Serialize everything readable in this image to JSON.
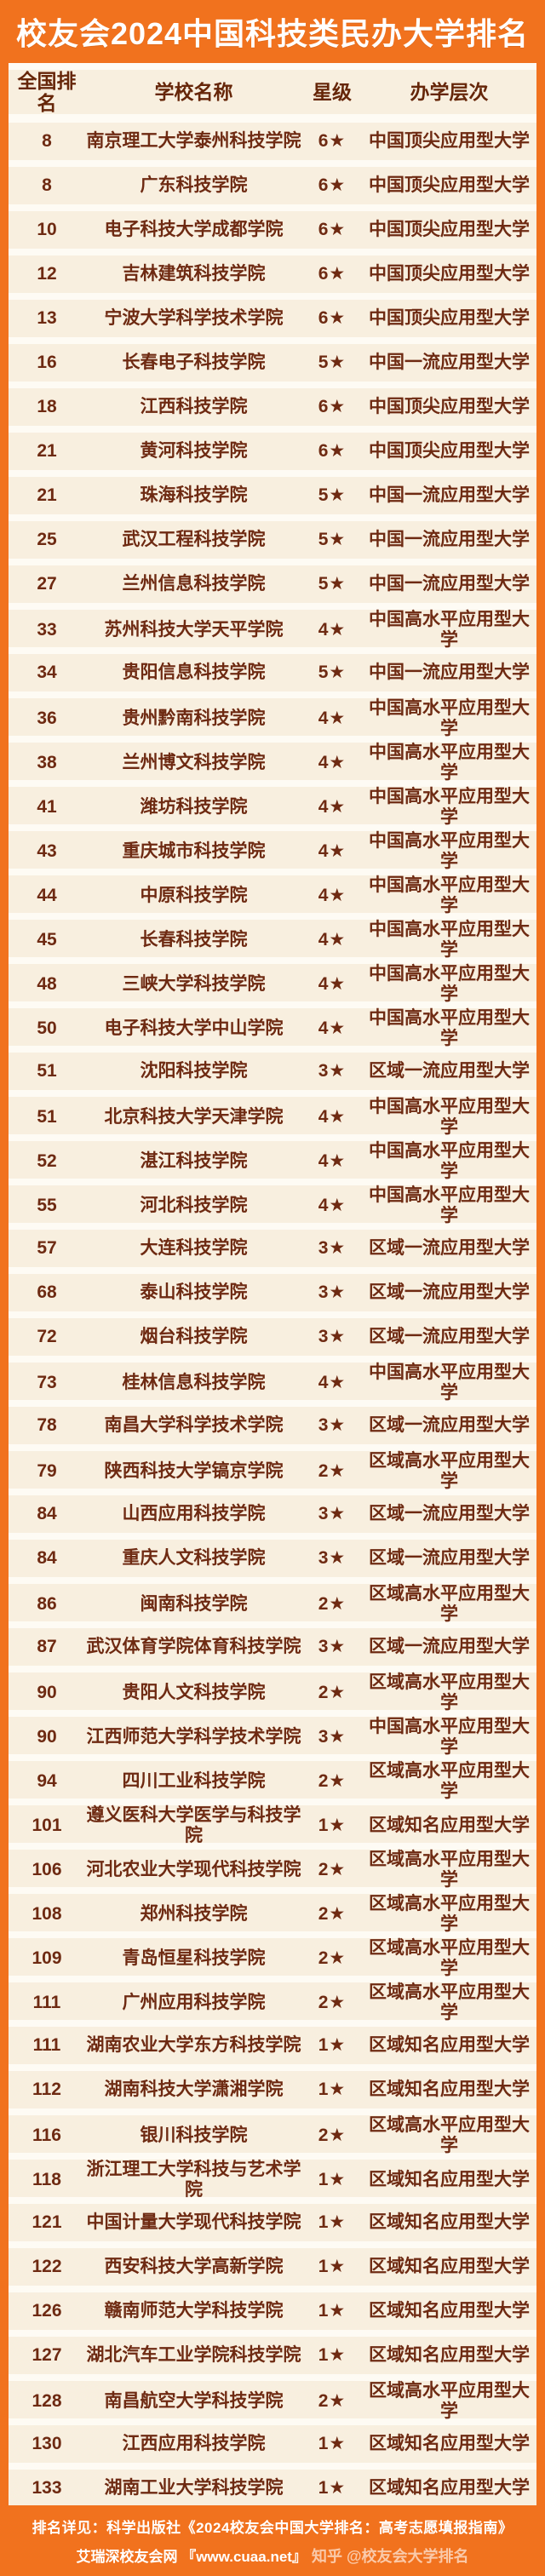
{
  "title": "校友会2024中国科技类民办大学排名",
  "colors": {
    "background_orange": "#F1721E",
    "panel_light": "#FEFBF4",
    "row_band_cream": "#F8EFDF",
    "text_dark_brown": "#6E2A12",
    "title_white": "#FFFFFF"
  },
  "chart_data": {
    "type": "table",
    "title": "校友会2024中国科技类民办大学排名",
    "columns": [
      "全国排名",
      "学校名称",
      "星级",
      "办学层次"
    ],
    "rows": [
      {
        "rank": "8",
        "name": "南京理工大学泰州科技学院",
        "star": "6★",
        "level": "中国顶尖应用型大学"
      },
      {
        "rank": "8",
        "name": "广东科技学院",
        "star": "6★",
        "level": "中国顶尖应用型大学"
      },
      {
        "rank": "10",
        "name": "电子科技大学成都学院",
        "star": "6★",
        "level": "中国顶尖应用型大学"
      },
      {
        "rank": "12",
        "name": "吉林建筑科技学院",
        "star": "6★",
        "level": "中国顶尖应用型大学"
      },
      {
        "rank": "13",
        "name": "宁波大学科学技术学院",
        "star": "6★",
        "level": "中国顶尖应用型大学"
      },
      {
        "rank": "16",
        "name": "长春电子科技学院",
        "star": "5★",
        "level": "中国一流应用型大学"
      },
      {
        "rank": "18",
        "name": "江西科技学院",
        "star": "6★",
        "level": "中国顶尖应用型大学"
      },
      {
        "rank": "21",
        "name": "黄河科技学院",
        "star": "6★",
        "level": "中国顶尖应用型大学"
      },
      {
        "rank": "21",
        "name": "珠海科技学院",
        "star": "5★",
        "level": "中国一流应用型大学"
      },
      {
        "rank": "25",
        "name": "武汉工程科技学院",
        "star": "5★",
        "level": "中国一流应用型大学"
      },
      {
        "rank": "27",
        "name": "兰州信息科技学院",
        "star": "5★",
        "level": "中国一流应用型大学"
      },
      {
        "rank": "33",
        "name": "苏州科技大学天平学院",
        "star": "4★",
        "level": "中国高水平应用型大学"
      },
      {
        "rank": "34",
        "name": "贵阳信息科技学院",
        "star": "5★",
        "level": "中国一流应用型大学"
      },
      {
        "rank": "36",
        "name": "贵州黔南科技学院",
        "star": "4★",
        "level": "中国高水平应用型大学"
      },
      {
        "rank": "38",
        "name": "兰州博文科技学院",
        "star": "4★",
        "level": "中国高水平应用型大学"
      },
      {
        "rank": "41",
        "name": "潍坊科技学院",
        "star": "4★",
        "level": "中国高水平应用型大学"
      },
      {
        "rank": "43",
        "name": "重庆城市科技学院",
        "star": "4★",
        "level": "中国高水平应用型大学"
      },
      {
        "rank": "44",
        "name": "中原科技学院",
        "star": "4★",
        "level": "中国高水平应用型大学"
      },
      {
        "rank": "45",
        "name": "长春科技学院",
        "star": "4★",
        "level": "中国高水平应用型大学"
      },
      {
        "rank": "48",
        "name": "三峡大学科技学院",
        "star": "4★",
        "level": "中国高水平应用型大学"
      },
      {
        "rank": "50",
        "name": "电子科技大学中山学院",
        "star": "4★",
        "level": "中国高水平应用型大学"
      },
      {
        "rank": "51",
        "name": "沈阳科技学院",
        "star": "3★",
        "level": "区域一流应用型大学"
      },
      {
        "rank": "51",
        "name": "北京科技大学天津学院",
        "star": "4★",
        "level": "中国高水平应用型大学"
      },
      {
        "rank": "52",
        "name": "湛江科技学院",
        "star": "4★",
        "level": "中国高水平应用型大学"
      },
      {
        "rank": "55",
        "name": "河北科技学院",
        "star": "4★",
        "level": "中国高水平应用型大学"
      },
      {
        "rank": "57",
        "name": "大连科技学院",
        "star": "3★",
        "level": "区域一流应用型大学"
      },
      {
        "rank": "68",
        "name": "泰山科技学院",
        "star": "3★",
        "level": "区域一流应用型大学"
      },
      {
        "rank": "72",
        "name": "烟台科技学院",
        "star": "3★",
        "level": "区域一流应用型大学"
      },
      {
        "rank": "73",
        "name": "桂林信息科技学院",
        "star": "4★",
        "level": "中国高水平应用型大学"
      },
      {
        "rank": "78",
        "name": "南昌大学科学技术学院",
        "star": "3★",
        "level": "区域一流应用型大学"
      },
      {
        "rank": "79",
        "name": "陕西科技大学镐京学院",
        "star": "2★",
        "level": "区域高水平应用型大学"
      },
      {
        "rank": "84",
        "name": "山西应用科技学院",
        "star": "3★",
        "level": "区域一流应用型大学"
      },
      {
        "rank": "84",
        "name": "重庆人文科技学院",
        "star": "3★",
        "level": "区域一流应用型大学"
      },
      {
        "rank": "86",
        "name": "闽南科技学院",
        "star": "2★",
        "level": "区域高水平应用型大学"
      },
      {
        "rank": "87",
        "name": "武汉体育学院体育科技学院",
        "star": "3★",
        "level": "区域一流应用型大学"
      },
      {
        "rank": "90",
        "name": "贵阳人文科技学院",
        "star": "2★",
        "level": "区域高水平应用型大学"
      },
      {
        "rank": "90",
        "name": "江西师范大学科学技术学院",
        "star": "3★",
        "level": "中国高水平应用型大学"
      },
      {
        "rank": "94",
        "name": "四川工业科技学院",
        "star": "2★",
        "level": "区域高水平应用型大学"
      },
      {
        "rank": "101",
        "name": "遵义医科大学医学与科技学院",
        "star": "1★",
        "level": "区域知名应用型大学"
      },
      {
        "rank": "106",
        "name": "河北农业大学现代科技学院",
        "star": "2★",
        "level": "区域高水平应用型大学"
      },
      {
        "rank": "108",
        "name": "郑州科技学院",
        "star": "2★",
        "level": "区域高水平应用型大学"
      },
      {
        "rank": "109",
        "name": "青岛恒星科技学院",
        "star": "2★",
        "level": "区域高水平应用型大学"
      },
      {
        "rank": "111",
        "name": "广州应用科技学院",
        "star": "2★",
        "level": "区域高水平应用型大学"
      },
      {
        "rank": "111",
        "name": "湖南农业大学东方科技学院",
        "star": "1★",
        "level": "区域知名应用型大学"
      },
      {
        "rank": "112",
        "name": "湖南科技大学潇湘学院",
        "star": "1★",
        "level": "区域知名应用型大学"
      },
      {
        "rank": "116",
        "name": "银川科技学院",
        "star": "2★",
        "level": "区域高水平应用型大学"
      },
      {
        "rank": "118",
        "name": "浙江理工大学科技与艺术学院",
        "star": "1★",
        "level": "区域知名应用型大学"
      },
      {
        "rank": "121",
        "name": "中国计量大学现代科技学院",
        "star": "1★",
        "level": "区域知名应用型大学"
      },
      {
        "rank": "122",
        "name": "西安科技大学高新学院",
        "star": "1★",
        "level": "区域知名应用型大学"
      },
      {
        "rank": "126",
        "name": "赣南师范大学科技学院",
        "star": "1★",
        "level": "区域知名应用型大学"
      },
      {
        "rank": "127",
        "name": "湖北汽车工业学院科技学院",
        "star": "1★",
        "level": "区域知名应用型大学"
      },
      {
        "rank": "128",
        "name": "南昌航空大学科技学院",
        "star": "2★",
        "level": "区域高水平应用型大学"
      },
      {
        "rank": "130",
        "name": "江西应用科技学院",
        "star": "1★",
        "level": "区域知名应用型大学"
      },
      {
        "rank": "133",
        "name": "湖南工业大学科技学院",
        "star": "1★",
        "level": "区域知名应用型大学"
      }
    ]
  },
  "footer": {
    "line1": "排名详见：科学出版社《2024校友会中国大学排名：高考志愿填报指南》",
    "line2": "艾瑞深校友会网 『www.cuaa.net』",
    "watermark": "知乎 @校友会大学排名"
  }
}
